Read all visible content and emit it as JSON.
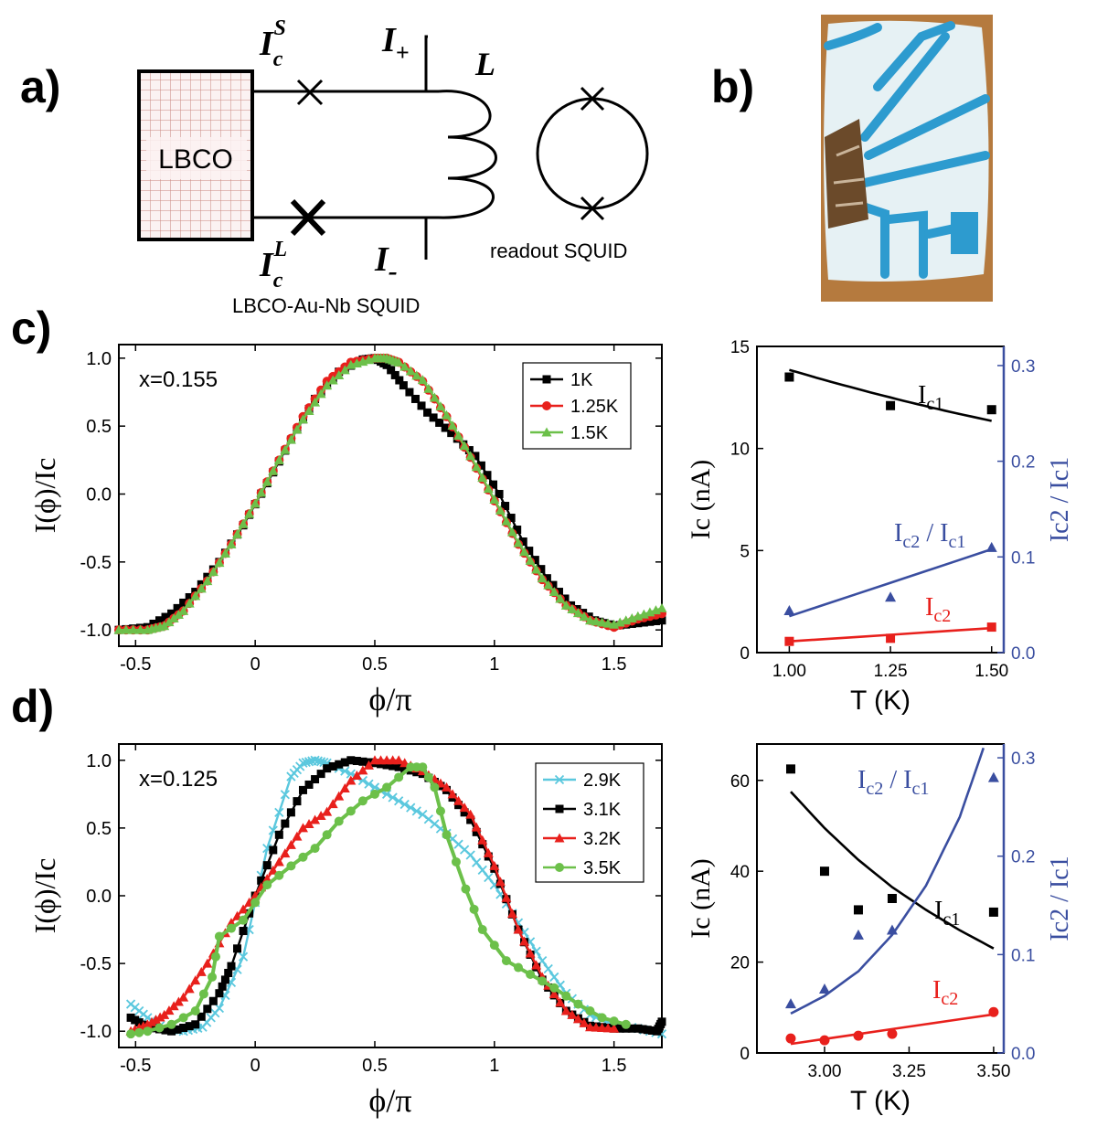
{
  "panel_labels": {
    "a": "a)",
    "b": "b)",
    "c": "c)",
    "d": "d)"
  },
  "schematic": {
    "block_label": "LBCO",
    "ic_small": {
      "base": "I",
      "sub": "c",
      "sup": "S"
    },
    "ic_large": {
      "base": "I",
      "sub": "c",
      "sup": "L"
    },
    "i_plus": {
      "base": "I",
      "sub": "+"
    },
    "i_minus": {
      "base": "I",
      "sub": "-"
    },
    "inductor_label": "L",
    "readout_label": "readout SQUID",
    "device_label": "LBCO-Au-Nb SQUID"
  },
  "photo": {
    "colors": {
      "background": "#b57a3e",
      "substrate": "#e6f1f4",
      "traces": "#2d9bcf",
      "sample": "#6b4a2a"
    }
  },
  "colors": {
    "black": "#000000",
    "red": "#e8201c",
    "green": "#6cc04a",
    "cyan": "#5bc8de",
    "blue": "#3a4ea0"
  },
  "chart_data": [
    {
      "id": "c-cpr",
      "type": "line",
      "annotation": "x=0.155",
      "xlabel": "ϕ/π",
      "ylabel": "I(ϕ)/Ic",
      "xlim": [
        -0.57,
        1.7
      ],
      "ylim": [
        -1.12,
        1.1
      ],
      "xticks": [
        -0.5,
        0,
        0.5,
        1,
        1.5
      ],
      "xtick_labels": [
        "-0.5",
        "0",
        "0.5",
        "1",
        "1.5"
      ],
      "yticks": [
        -1.0,
        -0.5,
        0.0,
        0.5,
        1.0
      ],
      "ytick_labels": [
        "-1.0",
        "-0.5",
        "0.0",
        "0.5",
        "1.0"
      ],
      "legend_position": "top-right",
      "series": [
        {
          "name": "1K",
          "color": "#000000",
          "marker": "square",
          "x": [
            -0.57,
            -0.45,
            -0.35,
            -0.25,
            -0.15,
            -0.05,
            0.05,
            0.15,
            0.25,
            0.35,
            0.45,
            0.5,
            0.55,
            0.62,
            0.72,
            0.82,
            0.92,
            1.02,
            1.12,
            1.22,
            1.32,
            1.42,
            1.5,
            1.6,
            1.7
          ],
          "y": [
            -1.0,
            -0.98,
            -0.88,
            -0.72,
            -0.5,
            -0.23,
            0.08,
            0.4,
            0.7,
            0.9,
            0.99,
            1.0,
            0.95,
            0.8,
            0.6,
            0.45,
            0.28,
            0.0,
            -0.35,
            -0.62,
            -0.82,
            -0.93,
            -0.97,
            -0.95,
            -0.93
          ]
        },
        {
          "name": "1.25K",
          "color": "#e8201c",
          "marker": "circle",
          "x": [
            -0.57,
            -0.45,
            -0.38,
            -0.3,
            -0.2,
            -0.1,
            0.0,
            0.1,
            0.2,
            0.3,
            0.4,
            0.5,
            0.55,
            0.6,
            0.7,
            0.8,
            0.9,
            1.0,
            1.1,
            1.2,
            1.3,
            1.4,
            1.5,
            1.6,
            1.7
          ],
          "y": [
            -1.0,
            -1.0,
            -0.97,
            -0.86,
            -0.64,
            -0.37,
            -0.07,
            0.25,
            0.57,
            0.83,
            0.97,
            1.0,
            1.0,
            0.97,
            0.83,
            0.57,
            0.27,
            -0.05,
            -0.37,
            -0.63,
            -0.82,
            -0.93,
            -0.98,
            -0.92,
            -0.88
          ]
        },
        {
          "name": "1.5K",
          "color": "#6cc04a",
          "marker": "triangle",
          "x": [
            -0.57,
            -0.45,
            -0.38,
            -0.3,
            -0.2,
            -0.1,
            0.0,
            0.1,
            0.2,
            0.3,
            0.4,
            0.5,
            0.55,
            0.6,
            0.7,
            0.8,
            0.9,
            1.0,
            1.1,
            1.2,
            1.3,
            1.4,
            1.5,
            1.6,
            1.7
          ],
          "y": [
            -1.0,
            -1.0,
            -0.97,
            -0.86,
            -0.64,
            -0.37,
            -0.07,
            0.25,
            0.55,
            0.8,
            0.95,
            1.0,
            1.0,
            0.97,
            0.84,
            0.58,
            0.28,
            -0.04,
            -0.36,
            -0.62,
            -0.82,
            -0.93,
            -0.96,
            -0.9,
            -0.84
          ]
        }
      ]
    },
    {
      "id": "c-ic",
      "type": "scatter",
      "xlabel": "T (K)",
      "ylabel": "Ic (nA)",
      "y2label": "Ic2 / Ic1",
      "xlim": [
        0.92,
        1.53
      ],
      "ylim": [
        0,
        15
      ],
      "y2lim": [
        0,
        0.32
      ],
      "xticks": [
        1.0,
        1.25,
        1.5
      ],
      "xtick_labels": [
        "1.00",
        "1.25",
        "1.50"
      ],
      "yticks": [
        0,
        5,
        10,
        15
      ],
      "ytick_labels": [
        "0",
        "5",
        "10",
        "15"
      ],
      "y2ticks": [
        0.0,
        0.1,
        0.2,
        0.3
      ],
      "y2tick_labels": [
        "0.0",
        "0.1",
        "0.2",
        "0.3"
      ],
      "annotations": [
        {
          "text": "Ic1",
          "base": "I",
          "sub": "c1",
          "color": "#000000"
        },
        {
          "text": "Ic2 / Ic1",
          "base": "I",
          "sub": "c2",
          "sep": " / ",
          "base2": "I",
          "sub2": "c1",
          "color": "#3a4ea0"
        },
        {
          "text": "Ic2",
          "base": "I",
          "sub": "c2",
          "color": "#e8201c"
        }
      ],
      "series": [
        {
          "name": "Ic1",
          "axis": "left",
          "color": "#000000",
          "marker": "square",
          "x": [
            1.0,
            1.25,
            1.5
          ],
          "y": [
            13.5,
            12.1,
            11.9
          ],
          "fit": {
            "x": [
              1.0,
              1.1,
              1.2,
              1.3,
              1.4,
              1.5
            ],
            "y": [
              13.85,
              13.28,
              12.75,
              12.25,
              11.78,
              11.35
            ]
          }
        },
        {
          "name": "Ic2",
          "axis": "left",
          "color": "#e8201c",
          "marker": "square",
          "x": [
            1.0,
            1.25,
            1.5
          ],
          "y": [
            0.55,
            0.7,
            1.25
          ],
          "fit": {
            "x": [
              1.0,
              1.5
            ],
            "y": [
              0.55,
              1.2
            ]
          }
        },
        {
          "name": "Ic2 / Ic1",
          "axis": "right",
          "color": "#3a4ea0",
          "marker": "triangle",
          "x": [
            1.0,
            1.25,
            1.5
          ],
          "y": [
            0.044,
            0.058,
            0.11
          ],
          "fit": {
            "x": [
              1.0,
              1.5
            ],
            "y": [
              0.038,
              0.108
            ]
          }
        }
      ]
    },
    {
      "id": "d-cpr",
      "type": "line",
      "annotation": "x=0.125",
      "xlabel": "ϕ/π",
      "ylabel": "I(ϕ)/Ic",
      "xlim": [
        -0.57,
        1.7
      ],
      "ylim": [
        -1.12,
        1.12
      ],
      "xticks": [
        -0.5,
        0,
        0.5,
        1,
        1.5
      ],
      "xtick_labels": [
        "-0.5",
        "0",
        "0.5",
        "1",
        "1.5"
      ],
      "yticks": [
        -1.0,
        -0.5,
        0.0,
        0.5,
        1.0
      ],
      "ytick_labels": [
        "-1.0",
        "-0.5",
        "0.0",
        "0.5",
        "1.0"
      ],
      "legend_position": "top-right",
      "series": [
        {
          "name": "2.9K",
          "color": "#5bc8de",
          "marker": "x",
          "x": [
            -0.52,
            -0.45,
            -0.38,
            -0.3,
            -0.22,
            -0.15,
            -0.05,
            0.05,
            0.15,
            0.2,
            0.25,
            0.3,
            0.4,
            0.5,
            0.6,
            0.7,
            0.8,
            0.9,
            1.0,
            1.1,
            1.2,
            1.3,
            1.4,
            1.5,
            1.6,
            1.7
          ],
          "y": [
            -0.8,
            -0.9,
            -0.98,
            -1.0,
            -0.97,
            -0.83,
            -0.45,
            0.35,
            0.88,
            0.98,
            1.0,
            0.98,
            0.9,
            0.8,
            0.7,
            0.6,
            0.46,
            0.3,
            0.08,
            -0.2,
            -0.48,
            -0.72,
            -0.88,
            -0.95,
            -0.98,
            -1.02
          ]
        },
        {
          "name": "3.1K",
          "color": "#000000",
          "marker": "square",
          "x": [
            -0.52,
            -0.45,
            -0.35,
            -0.25,
            -0.15,
            -0.1,
            0.0,
            0.1,
            0.2,
            0.3,
            0.4,
            0.5,
            0.6,
            0.7,
            0.8,
            0.9,
            1.0,
            1.1,
            1.2,
            1.3,
            1.4,
            1.5,
            1.6,
            1.68,
            1.7
          ],
          "y": [
            -0.9,
            -0.97,
            -1.0,
            -0.95,
            -0.72,
            -0.52,
            0.0,
            0.45,
            0.78,
            0.94,
            1.0,
            0.98,
            0.95,
            0.9,
            0.78,
            0.56,
            0.2,
            -0.25,
            -0.62,
            -0.85,
            -0.96,
            -0.98,
            -0.98,
            -1.0,
            -0.93
          ]
        },
        {
          "name": "3.2K",
          "color": "#e8201c",
          "marker": "triangle",
          "x": [
            -0.52,
            -0.45,
            -0.38,
            -0.3,
            -0.2,
            -0.1,
            0.0,
            0.1,
            0.2,
            0.3,
            0.4,
            0.5,
            0.6,
            0.7,
            0.8,
            0.9,
            1.0,
            1.1,
            1.2,
            1.3,
            1.4,
            1.5
          ],
          "y": [
            -1.0,
            -0.95,
            -0.88,
            -0.75,
            -0.5,
            -0.2,
            0.0,
            0.25,
            0.5,
            0.62,
            0.85,
            1.0,
            1.0,
            0.92,
            0.8,
            0.6,
            0.22,
            -0.25,
            -0.6,
            -0.85,
            -0.97,
            -0.98
          ]
        },
        {
          "name": "3.5K",
          "color": "#6cc04a",
          "marker": "circle",
          "x": [
            -0.52,
            -0.45,
            -0.35,
            -0.25,
            -0.18,
            -0.15,
            -0.05,
            0.05,
            0.15,
            0.25,
            0.35,
            0.45,
            0.55,
            0.65,
            0.7,
            0.75,
            0.8,
            0.88,
            0.95,
            1.05,
            1.15,
            1.25,
            1.35,
            1.45,
            1.55
          ],
          "y": [
            -1.02,
            -1.0,
            -0.95,
            -0.85,
            -0.6,
            -0.3,
            -0.18,
            0.08,
            0.22,
            0.35,
            0.55,
            0.7,
            0.8,
            0.95,
            0.95,
            0.8,
            0.45,
            0.05,
            -0.25,
            -0.48,
            -0.58,
            -0.68,
            -0.8,
            -0.9,
            -0.95
          ]
        }
      ]
    },
    {
      "id": "d-ic",
      "type": "scatter",
      "xlabel": "T (K)",
      "ylabel": "Ic (nA)",
      "y2label": "Ic2 / Ic1",
      "xlim": [
        2.8,
        3.53
      ],
      "ylim": [
        0,
        68
      ],
      "y2lim": [
        0,
        0.314
      ],
      "xticks": [
        3.0,
        3.25,
        3.5
      ],
      "xtick_labels": [
        "3.00",
        "3.25",
        "3.50"
      ],
      "yticks": [
        0,
        20,
        40,
        60
      ],
      "ytick_labels": [
        "0",
        "20",
        "40",
        "60"
      ],
      "y2ticks": [
        0.0,
        0.1,
        0.2,
        0.3
      ],
      "y2tick_labels": [
        "0.0",
        "0.1",
        "0.2",
        "0.3"
      ],
      "annotations": [
        {
          "text": "Ic2 / Ic1",
          "base": "I",
          "sub": "c2",
          "sep": " / ",
          "base2": "I",
          "sub2": "c1",
          "color": "#3a4ea0"
        },
        {
          "text": "Ic1",
          "base": "I",
          "sub": "c1",
          "color": "#000000"
        },
        {
          "text": "Ic2",
          "base": "I",
          "sub": "c2",
          "color": "#e8201c"
        }
      ],
      "series": [
        {
          "name": "Ic1",
          "axis": "left",
          "color": "#000000",
          "marker": "square",
          "x": [
            2.9,
            3.0,
            3.1,
            3.2,
            3.5
          ],
          "y": [
            62.5,
            40,
            31.5,
            34,
            31
          ],
          "fit": {
            "x": [
              2.9,
              3.0,
              3.1,
              3.2,
              3.3,
              3.4,
              3.5
            ],
            "y": [
              57.5,
              49.5,
              42.5,
              36.5,
              31.5,
              27,
              23
            ]
          }
        },
        {
          "name": "Ic2",
          "axis": "left",
          "color": "#e8201c",
          "marker": "circle",
          "x": [
            2.9,
            3.0,
            3.1,
            3.2,
            3.5
          ],
          "y": [
            3.2,
            2.8,
            3.8,
            4.2,
            9
          ],
          "fit": {
            "x": [
              2.9,
              3.5
            ],
            "y": [
              2.0,
              8.5
            ]
          }
        },
        {
          "name": "Ic2 / Ic1",
          "axis": "right",
          "color": "#3a4ea0",
          "marker": "triangle",
          "x": [
            2.9,
            3.0,
            3.1,
            3.2,
            3.5
          ],
          "y": [
            0.05,
            0.065,
            0.12,
            0.125,
            0.28
          ],
          "fit": {
            "x": [
              2.9,
              3.0,
              3.1,
              3.2,
              3.3,
              3.4,
              3.47
            ],
            "y": [
              0.04,
              0.058,
              0.083,
              0.12,
              0.17,
              0.24,
              0.31
            ]
          }
        }
      ]
    }
  ]
}
